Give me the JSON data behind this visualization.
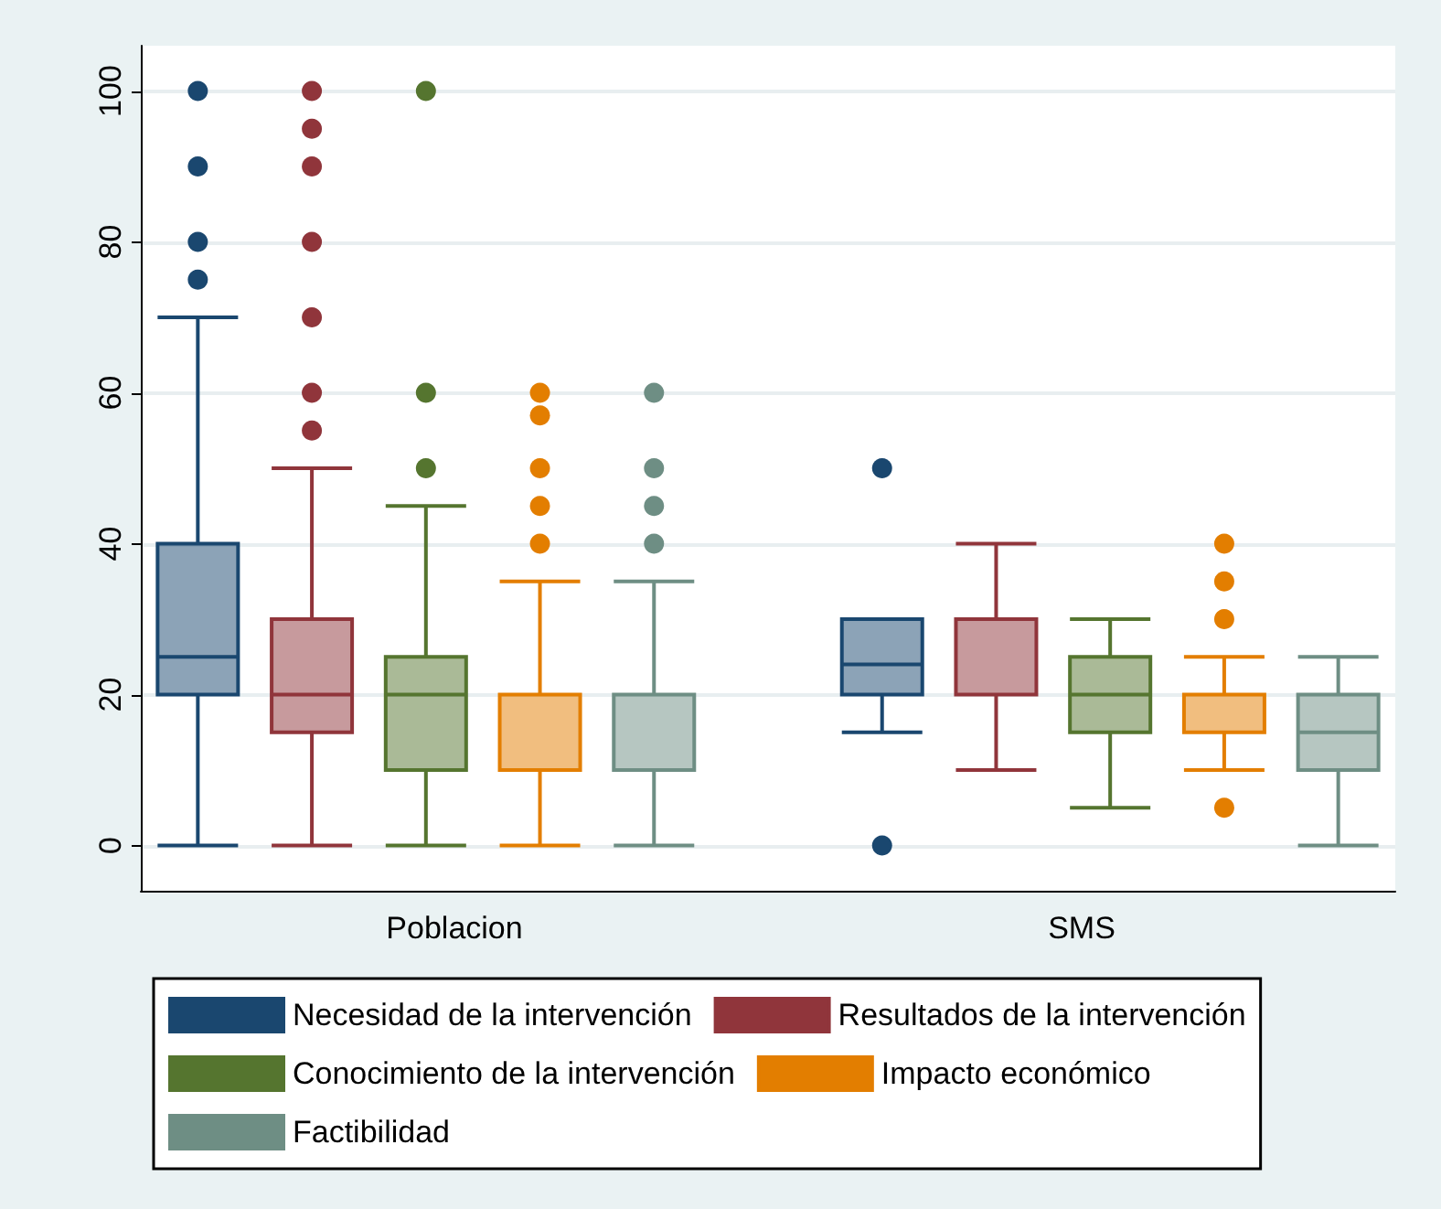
{
  "chart_data": {
    "type": "box",
    "categories": [
      "Poblacion",
      "SMS"
    ],
    "ylim": [
      -6,
      106
    ],
    "yticks": [
      0,
      20,
      40,
      60,
      80,
      100
    ],
    "grid": "y",
    "legend": "bottom",
    "series": [
      {
        "name": "Necesidad de la intervención",
        "color": "#1a476f",
        "boxes": [
          {
            "low": 0,
            "q1": 20,
            "median": 25,
            "q3": 40,
            "high": 70,
            "outliers": [
              75,
              80,
              90,
              100
            ]
          },
          {
            "low": 15,
            "q1": 20,
            "median": 24,
            "q3": 30,
            "high": 30,
            "outliers": [
              0,
              50
            ]
          }
        ]
      },
      {
        "name": "Resultados de la intervención",
        "color": "#90353b",
        "boxes": [
          {
            "low": 0,
            "q1": 15,
            "median": 20,
            "q3": 30,
            "high": 50,
            "outliers": [
              55,
              60,
              70,
              80,
              90,
              95,
              100
            ]
          },
          {
            "low": 10,
            "q1": 20,
            "median": 20,
            "q3": 30,
            "high": 40
          }
        ]
      },
      {
        "name": "Conocimiento de la intervención",
        "color": "#55752f",
        "boxes": [
          {
            "low": 0,
            "q1": 10,
            "median": 20,
            "q3": 25,
            "high": 45,
            "outliers": [
              50,
              60,
              100
            ]
          },
          {
            "low": 5,
            "q1": 15,
            "median": 20,
            "q3": 25,
            "high": 30
          }
        ]
      },
      {
        "name": "Impacto económico",
        "color": "#e37e00",
        "boxes": [
          {
            "low": 0,
            "q1": 10,
            "median": 10,
            "q3": 20,
            "high": 35,
            "outliers": [
              40,
              45,
              50,
              57,
              60
            ]
          },
          {
            "low": 10,
            "q1": 15,
            "median": 20,
            "q3": 20,
            "high": 25,
            "outliers": [
              5,
              30,
              35,
              40
            ]
          }
        ]
      },
      {
        "name": "Factibilidad",
        "color": "#6e8e84",
        "boxes": [
          {
            "low": 0,
            "q1": 10,
            "median": 10,
            "q3": 20,
            "high": 35,
            "outliers": [
              40,
              45,
              50,
              60
            ]
          },
          {
            "low": 0,
            "q1": 10,
            "median": 15,
            "q3": 20,
            "high": 25
          }
        ]
      }
    ]
  }
}
